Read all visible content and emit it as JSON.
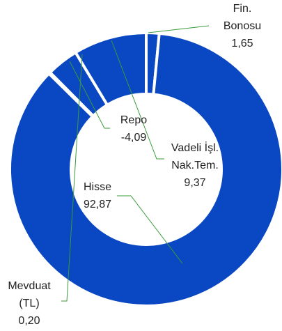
{
  "chart_data": {
    "type": "donut",
    "categories": [
      "Fin. Bonosu",
      "Hisse",
      "Mevduat (TL)",
      "Repo",
      "Vadeli İşl. Nak.Tem."
    ],
    "values": [
      1.65,
      92.87,
      0.2,
      -4.09,
      9.37
    ],
    "value_labels": [
      "1,65",
      "92,87",
      "0,20",
      "-4,09",
      "9,37"
    ],
    "color": "#0a47c2"
  }
}
